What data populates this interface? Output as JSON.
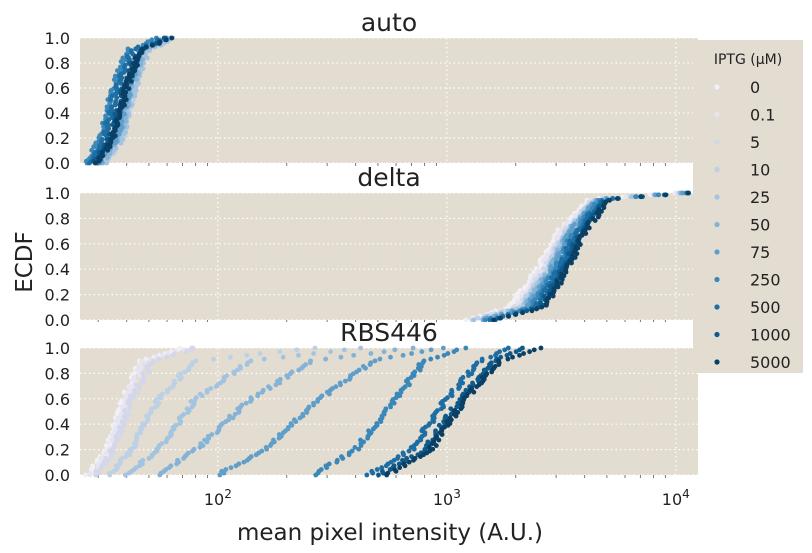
{
  "chart_data": {
    "type": "scatter",
    "ylabel": "ECDF",
    "xlabel": "mean pixel intensity (A.U.)",
    "xscale": "log",
    "xlim": [
      25,
      12500
    ],
    "ylim": [
      0,
      1
    ],
    "x_ticks": [
      "10^2",
      "10^3",
      "10^4"
    ],
    "y_ticks": [
      "0.0",
      "0.2",
      "0.4",
      "0.6",
      "0.8",
      "1.0"
    ],
    "grid": true,
    "legend": {
      "title": "IPTG (μM)",
      "placement": "right",
      "entries": [
        "0",
        "0.1",
        "5",
        "10",
        "25",
        "50",
        "75",
        "250",
        "500",
        "1000",
        "5000"
      ]
    },
    "colors": [
      "#f2f0f7",
      "#e6e4f1",
      "#d4d6ea",
      "#bcd0e6",
      "#a3c4e0",
      "#84b3d7",
      "#5f9ec9",
      "#3a88ba",
      "#1c6ea5",
      "#0d5a8c",
      "#0a3f66"
    ],
    "panels": [
      {
        "title": "auto",
        "series_curves": [
          {
            "name": "0",
            "x": [
              30,
              35,
              40,
              45,
              60
            ],
            "y": [
              0.0,
              0.2,
              0.6,
              0.9,
              1.0
            ]
          },
          {
            "name": "0.1",
            "x": [
              31,
              36,
              41,
              46,
              60
            ],
            "y": [
              0.0,
              0.2,
              0.6,
              0.9,
              1.0
            ]
          },
          {
            "name": "5",
            "x": [
              31,
              37,
              42,
              47,
              62
            ],
            "y": [
              0.0,
              0.2,
              0.6,
              0.9,
              1.0
            ]
          },
          {
            "name": "10",
            "x": [
              32,
              38,
              43,
              48,
              64
            ],
            "y": [
              0.0,
              0.2,
              0.6,
              0.9,
              1.0
            ]
          },
          {
            "name": "25",
            "x": [
              32,
              38,
              43,
              49,
              64
            ],
            "y": [
              0.0,
              0.2,
              0.6,
              0.9,
              1.0
            ]
          },
          {
            "name": "50",
            "x": [
              31,
              37,
              42,
              47,
              62
            ],
            "y": [
              0.0,
              0.2,
              0.6,
              0.9,
              1.0
            ]
          },
          {
            "name": "75",
            "x": [
              30,
              36,
              41,
              45,
              60
            ],
            "y": [
              0.0,
              0.2,
              0.6,
              0.9,
              1.0
            ]
          },
          {
            "name": "250",
            "x": [
              27,
              31,
              35,
              40,
              55
            ],
            "y": [
              0.0,
              0.2,
              0.6,
              0.9,
              1.0
            ]
          },
          {
            "name": "500",
            "x": [
              28,
              32,
              36,
              42,
              58
            ],
            "y": [
              0.0,
              0.2,
              0.6,
              0.9,
              1.0
            ]
          },
          {
            "name": "1000",
            "x": [
              29,
              34,
              39,
              45,
              60
            ],
            "y": [
              0.0,
              0.2,
              0.6,
              0.9,
              1.0
            ]
          },
          {
            "name": "5000",
            "x": [
              30,
              35,
              40,
              46,
              62
            ],
            "y": [
              0.0,
              0.2,
              0.6,
              0.9,
              1.0
            ]
          }
        ]
      },
      {
        "title": "delta",
        "series_curves": [
          {
            "name": "0",
            "x": [
              1200,
              1900,
              2500,
              3100,
              4200,
              10000
            ],
            "y": [
              0.0,
              0.1,
              0.4,
              0.7,
              0.95,
              1.0
            ]
          },
          {
            "name": "0.1",
            "x": [
              1250,
              2000,
              2600,
              3200,
              4300,
              10200
            ],
            "y": [
              0.0,
              0.1,
              0.4,
              0.7,
              0.95,
              1.0
            ]
          },
          {
            "name": "5",
            "x": [
              1300,
              2050,
              2700,
              3300,
              4400,
              10300
            ],
            "y": [
              0.0,
              0.1,
              0.4,
              0.7,
              0.95,
              1.0
            ]
          },
          {
            "name": "10",
            "x": [
              1300,
              2100,
              2750,
              3350,
              4450,
              10400
            ],
            "y": [
              0.0,
              0.1,
              0.4,
              0.7,
              0.95,
              1.0
            ]
          },
          {
            "name": "25",
            "x": [
              1350,
              2150,
              2800,
              3400,
              4500,
              10500
            ],
            "y": [
              0.0,
              0.1,
              0.4,
              0.7,
              0.95,
              1.0
            ]
          },
          {
            "name": "50",
            "x": [
              1400,
              2200,
              2850,
              3450,
              4550,
              10600
            ],
            "y": [
              0.0,
              0.1,
              0.4,
              0.7,
              0.95,
              1.0
            ]
          },
          {
            "name": "75",
            "x": [
              1450,
              2250,
              2900,
              3500,
              4600,
              10700
            ],
            "y": [
              0.0,
              0.1,
              0.4,
              0.7,
              0.95,
              1.0
            ]
          },
          {
            "name": "250",
            "x": [
              1500,
              2350,
              3000,
              3600,
              4700,
              11000
            ],
            "y": [
              0.0,
              0.1,
              0.4,
              0.7,
              0.95,
              1.0
            ]
          },
          {
            "name": "500",
            "x": [
              1550,
              2450,
              3100,
              3700,
              4800,
              11200
            ],
            "y": [
              0.0,
              0.1,
              0.4,
              0.7,
              0.95,
              1.0
            ]
          },
          {
            "name": "1000",
            "x": [
              1600,
              2550,
              3250,
              3850,
              4950,
              11400
            ],
            "y": [
              0.0,
              0.1,
              0.4,
              0.7,
              0.95,
              1.0
            ]
          },
          {
            "name": "5000",
            "x": [
              1650,
              2650,
              3350,
              4000,
              5100,
              11600
            ],
            "y": [
              0.0,
              0.1,
              0.4,
              0.7,
              0.95,
              1.0
            ]
          }
        ]
      },
      {
        "title": "RBS446",
        "series_curves": [
          {
            "name": "0",
            "x": [
              27,
              33,
              39,
              46,
              70
            ],
            "y": [
              0.0,
              0.2,
              0.6,
              0.9,
              1.0
            ]
          },
          {
            "name": "0.1",
            "x": [
              28,
              34,
              40,
              48,
              75
            ],
            "y": [
              0.0,
              0.2,
              0.6,
              0.9,
              1.0
            ]
          },
          {
            "name": "5",
            "x": [
              29,
              35,
              42,
              52,
              80
            ],
            "y": [
              0.0,
              0.2,
              0.6,
              0.9,
              1.0
            ]
          },
          {
            "name": "10",
            "x": [
              34,
              42,
              55,
              80,
              260
            ],
            "y": [
              0.0,
              0.2,
              0.6,
              0.9,
              1.0
            ]
          },
          {
            "name": "25",
            "x": [
              40,
              55,
              80,
              140,
              430
            ],
            "y": [
              0.0,
              0.2,
              0.6,
              0.9,
              1.0
            ]
          },
          {
            "name": "50",
            "x": [
              55,
              80,
              140,
              260,
              700
            ],
            "y": [
              0.0,
              0.2,
              0.6,
              0.9,
              1.0
            ]
          },
          {
            "name": "75",
            "x": [
              100,
              160,
              280,
              480,
              950
            ],
            "y": [
              0.0,
              0.2,
              0.6,
              0.9,
              1.0
            ]
          },
          {
            "name": "250",
            "x": [
              260,
              400,
              600,
              800,
              1200
            ],
            "y": [
              0.0,
              0.2,
              0.6,
              0.9,
              1.0
            ]
          },
          {
            "name": "500",
            "x": [
              450,
              700,
              1000,
              1400,
              1900
            ],
            "y": [
              0.0,
              0.2,
              0.6,
              0.9,
              1.0
            ]
          },
          {
            "name": "1000",
            "x": [
              500,
              800,
              1150,
              1600,
              2200
            ],
            "y": [
              0.0,
              0.2,
              0.6,
              0.9,
              1.0
            ]
          },
          {
            "name": "5000",
            "x": [
              550,
              850,
              1200,
              1700,
              2600
            ],
            "y": [
              0.0,
              0.2,
              0.6,
              0.9,
              1.0
            ]
          }
        ]
      }
    ]
  }
}
